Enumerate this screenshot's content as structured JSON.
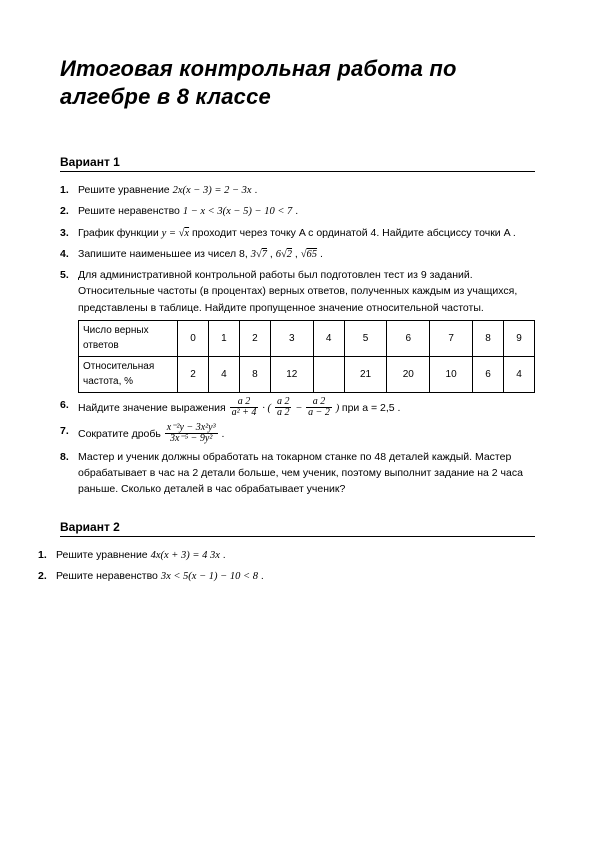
{
  "document": {
    "background_color": "#ffffff",
    "text_color": "#000000",
    "title_fontsize": 22,
    "body_fontsize": 10.5,
    "title": "Итоговая контрольная работа по алгебре в 8 классе",
    "variant1": {
      "header": "Вариант 1",
      "p1": {
        "num": "1.",
        "text": "Решите уравнение ",
        "formula": "2x(x − 3) = 2 − 3x",
        "tail": " ."
      },
      "p2": {
        "num": "2.",
        "text": "Решите неравенство ",
        "formula": "1 − x < 3(x − 5) − 10 < 7",
        "tail": " ."
      },
      "p3": {
        "num": "3.",
        "text_a": "График функции ",
        "formula": "y = √x",
        "text_b": " проходит через точку  A  с ординатой 4. Найдите абсциссу точки  A ."
      },
      "p4": {
        "num": "4.",
        "text": "Запишите наименьшее из чисел 8, ",
        "n1": "3√7",
        "n2": "6√2",
        "n3": "√65",
        "tail": " ."
      },
      "p5": {
        "num": "5.",
        "text": "Для административной контрольной работы был подготовлен тест из 9 заданий. Относительные частоты (в процентах) верных ответов, полученных каждым из учащихся, представлены в таблице. Найдите пропущенное значение относительной частоты.",
        "table": {
          "row1_label": "Число верных ответов",
          "row1": [
            "0",
            "1",
            "2",
            "3",
            "4",
            "5",
            "6",
            "7",
            "8",
            "9"
          ],
          "row2_label": "Относительная частота, %",
          "row2": [
            "2",
            "4",
            "8",
            "12",
            "",
            "21",
            "20",
            "10",
            "6",
            "4"
          ]
        }
      },
      "p6": {
        "num": "6.",
        "text": "Найдите значение выражения ",
        "f1_top": "a   2",
        "f1_bot": "a² + 4",
        "f2_top": "a   2",
        "f2_bot": "a   2",
        "f3_top": "a   2",
        "f3_bot": "a − 2",
        "mid": " · (",
        "close": ") ",
        "tail": " при a =  2,5 ."
      },
      "p7": {
        "num": "7.",
        "text": "Сократите дробь ",
        "top": "x⁻²y − 3x²y³",
        "bot": "3x⁻⁵ − 9y²",
        "tail": " ."
      },
      "p8": {
        "num": "8.",
        "text": "Мастер и ученик должны обработать на токарном станке по 48 деталей каждый. Мастер обрабатывает в час на 2 детали больше, чем ученик, поэтому выполнит задание на 2 часа раньше. Сколько деталей в час обрабатывает ученик?"
      }
    },
    "variant2": {
      "header": "Вариант 2",
      "p1": {
        "num": "1.",
        "text": "Решите уравнение ",
        "formula": "4x(x + 3) = 4   3x",
        "tail": " ."
      },
      "p2": {
        "num": "2.",
        "text": "Решите неравенство ",
        "formula": "3x < 5(x − 1) − 10 < 8",
        "tail": " ."
      }
    }
  }
}
